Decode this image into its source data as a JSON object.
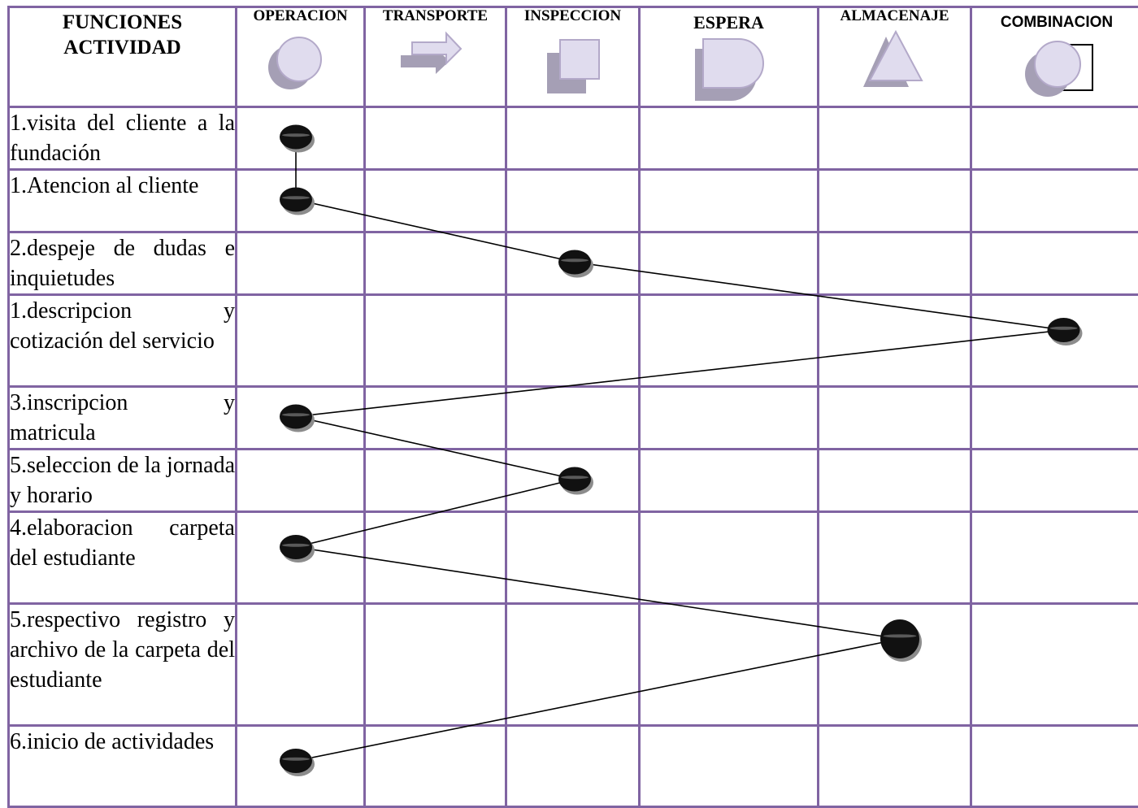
{
  "headers": {
    "funciones_line1": "FUNCIONES",
    "funciones_line2": "ACTIVIDAD",
    "operacion": "OPERACION",
    "transporte": "TRANSPORTE",
    "inspeccion": "INSPECCION",
    "espera": "ESPERA",
    "almacenaje": "ALMACENAJE",
    "combinacion": "COMBINACION"
  },
  "symbols": {
    "operacion": "circle-icon",
    "transporte": "arrow-icon",
    "inspeccion": "square-icon",
    "espera": "d-shape-icon",
    "almacenaje": "triangle-icon",
    "combinacion": "circle-in-square-icon"
  },
  "rows": [
    {
      "activity": "1.visita del cliente a la fundación",
      "column": "operacion"
    },
    {
      "activity": "1.Atencion al cliente",
      "column": "operacion"
    },
    {
      "activity": "2.despeje de dudas e inquietudes",
      "column": "inspeccion"
    },
    {
      "activity": "1.descripcion y cotización del servicio",
      "column": "combinacion"
    },
    {
      "activity": "3.inscripcion y matricula",
      "column": "operacion"
    },
    {
      "activity": "5.seleccion de la jornada y horario",
      "column": "inspeccion"
    },
    {
      "activity": "4.elaboracion carpeta del estudiante",
      "column": "operacion"
    },
    {
      "activity": "5.respectivo registro y archivo de la carpeta del estudiante",
      "column": "almacenaje"
    },
    {
      "activity": "6.inicio de actividades",
      "column": "operacion"
    }
  ],
  "colors": {
    "grid_border": "#8064a2",
    "symbol_light": "#e0dcee",
    "symbol_mid": "#b3a9c9",
    "symbol_shadow": "#a59fb5",
    "marker": "#111111"
  }
}
